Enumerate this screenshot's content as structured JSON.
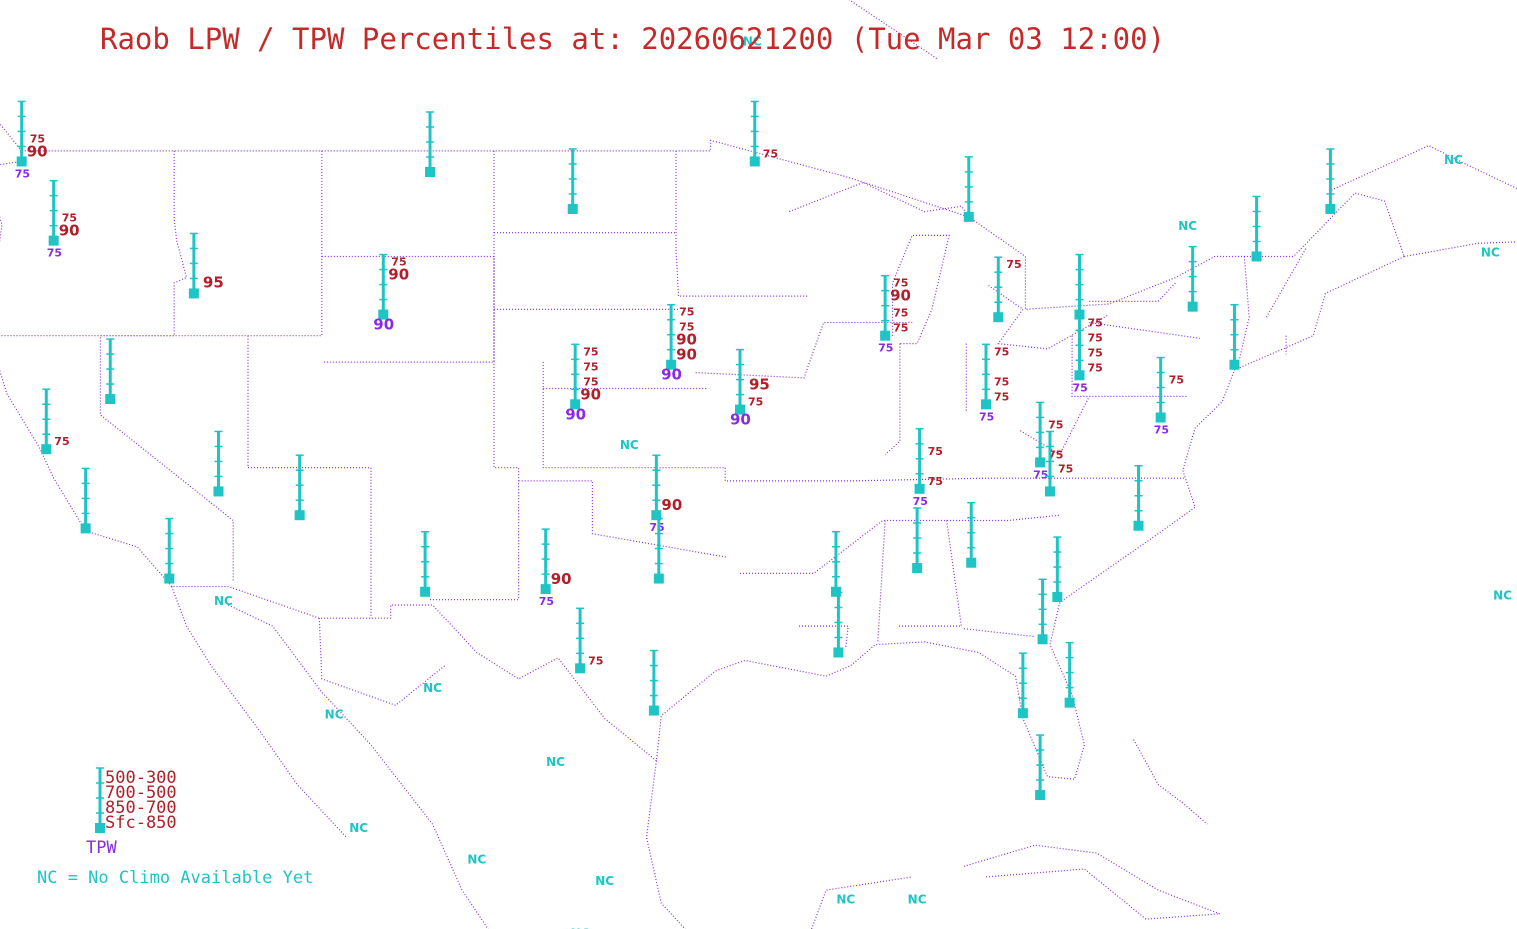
{
  "title": "Raob LPW / TPW Percentiles at: 20260621200 (Tue Mar 03 12:00)",
  "colors": {
    "title": "#c42a2a",
    "lpw": "#b0202a",
    "tpw": "#8a2be2",
    "station": "#1fc4c4",
    "map": "#8a2bd8"
  },
  "legend": {
    "layers": [
      "500-300",
      "700-500",
      "850-700",
      "Sfc-850"
    ],
    "tpw_label": "TPW",
    "nc_note": "NC = No Climo Available Yet"
  },
  "nc_label": "NC",
  "nc_marks": [
    {
      "lon": -130.5,
      "lat": 55.5
    },
    {
      "lon": -119.5,
      "lat": 55.2
    },
    {
      "lon": -107.0,
      "lat": 55.5
    },
    {
      "lon": -93.5,
      "lat": 53.0
    },
    {
      "lon": -128.5,
      "lat": 50.0
    },
    {
      "lon": -75.8,
      "lat": 46.0
    },
    {
      "lon": -65.0,
      "lat": 48.5
    },
    {
      "lon": -63.5,
      "lat": 45.0
    },
    {
      "lon": -63.0,
      "lat": 32.0
    },
    {
      "lon": -115.0,
      "lat": 31.8
    },
    {
      "lon": -110.5,
      "lat": 27.5
    },
    {
      "lon": -106.5,
      "lat": 28.5
    },
    {
      "lon": -101.5,
      "lat": 25.7
    },
    {
      "lon": -109.5,
      "lat": 23.2
    },
    {
      "lon": -104.7,
      "lat": 22.0
    },
    {
      "lon": -99.5,
      "lat": 21.2
    },
    {
      "lon": -100.5,
      "lat": 19.2
    },
    {
      "lon": -89.7,
      "lat": 20.5
    },
    {
      "lon": -86.8,
      "lat": 20.5
    },
    {
      "lon": -98.5,
      "lat": 37.7
    }
  ],
  "stations": [
    {
      "lon": -123.2,
      "lat": 48.6,
      "labels": [
        {
          "t": "75",
          "c": "lpw",
          "s": "s",
          "dx": 8,
          "dy": -19
        },
        {
          "t": "90",
          "c": "lpw",
          "s": "l",
          "dx": 5,
          "dy": -5
        },
        {
          "t": "75",
          "c": "tpw",
          "s": "s",
          "dx": -7,
          "dy": 16
        }
      ]
    },
    {
      "lon": -121.9,
      "lat": 45.6,
      "labels": [
        {
          "t": "75",
          "c": "lpw",
          "s": "s",
          "dx": 8,
          "dy": -19
        },
        {
          "t": "90",
          "c": "lpw",
          "s": "l",
          "dx": 5,
          "dy": -5
        },
        {
          "t": "75",
          "c": "tpw",
          "s": "s",
          "dx": -7,
          "dy": 16
        }
      ]
    },
    {
      "lon": -116.2,
      "lat": 43.6,
      "labels": [
        {
          "t": "95",
          "c": "lpw",
          "s": "l",
          "dx": 9,
          "dy": -6
        }
      ]
    },
    {
      "lon": -108.5,
      "lat": 42.8,
      "labels": [
        {
          "t": "75",
          "c": "lpw",
          "s": "s",
          "dx": 8,
          "dy": -49
        },
        {
          "t": "90",
          "c": "lpw",
          "s": "l",
          "dx": 5,
          "dy": -35
        },
        {
          "t": "90",
          "c": "tpw",
          "s": "l",
          "dx": -10,
          "dy": 15
        }
      ]
    },
    {
      "lon": -106.6,
      "lat": 48.2,
      "labels": []
    },
    {
      "lon": -100.8,
      "lat": 46.8,
      "labels": []
    },
    {
      "lon": -93.4,
      "lat": 48.6,
      "labels": [
        {
          "t": "75",
          "c": "lpw",
          "s": "s",
          "dx": 8,
          "dy": -4
        }
      ]
    },
    {
      "lon": -119.6,
      "lat": 39.6,
      "labels": []
    },
    {
      "lon": -122.2,
      "lat": 37.7,
      "labels": [
        {
          "t": "75",
          "c": "lpw",
          "s": "s",
          "dx": 8,
          "dy": -4
        }
      ]
    },
    {
      "lon": -115.2,
      "lat": 36.1,
      "labels": []
    },
    {
      "lon": -111.9,
      "lat": 35.2,
      "labels": []
    },
    {
      "lon": -120.6,
      "lat": 34.7,
      "labels": []
    },
    {
      "lon": -117.2,
      "lat": 32.8,
      "labels": []
    },
    {
      "lon": -106.8,
      "lat": 32.3,
      "labels": []
    },
    {
      "lon": -101.9,
      "lat": 32.4,
      "labels": [
        {
          "t": "90",
          "c": "lpw",
          "s": "l",
          "dx": 5,
          "dy": -5
        },
        {
          "t": "75",
          "c": "tpw",
          "s": "s",
          "dx": -7,
          "dy": 16
        }
      ]
    },
    {
      "lon": -100.5,
      "lat": 29.4,
      "labels": [
        {
          "t": "75",
          "c": "lpw",
          "s": "s",
          "dx": 8,
          "dy": -4
        }
      ]
    },
    {
      "lon": -97.5,
      "lat": 27.8,
      "labels": []
    },
    {
      "lon": -100.7,
      "lat": 39.4,
      "labels": [
        {
          "t": "75",
          "c": "lpw",
          "s": "s",
          "dx": 8,
          "dy": -49
        },
        {
          "t": "75",
          "c": "lpw",
          "s": "s",
          "dx": 8,
          "dy": -34
        },
        {
          "t": "75",
          "c": "lpw",
          "s": "s",
          "dx": 8,
          "dy": -19
        },
        {
          "t": "90",
          "c": "lpw",
          "s": "l",
          "dx": 5,
          "dy": -5
        },
        {
          "t": "90",
          "c": "tpw",
          "s": "l",
          "dx": -10,
          "dy": 15
        }
      ]
    },
    {
      "lon": -96.8,
      "lat": 40.9,
      "labels": [
        {
          "t": "75",
          "c": "lpw",
          "s": "s",
          "dx": 8,
          "dy": -49
        },
        {
          "t": "75",
          "c": "lpw",
          "s": "s",
          "dx": 8,
          "dy": -34
        },
        {
          "t": "90",
          "c": "lpw",
          "s": "l",
          "dx": 5,
          "dy": -20
        },
        {
          "t": "90",
          "c": "lpw",
          "s": "l",
          "dx": 5,
          "dy": -5
        },
        {
          "t": "90",
          "c": "tpw",
          "s": "l",
          "dx": -10,
          "dy": 15
        }
      ]
    },
    {
      "lon": -94.0,
      "lat": 39.2,
      "labels": [
        {
          "t": "95",
          "c": "lpw",
          "s": "l",
          "dx": 9,
          "dy": -20
        },
        {
          "t": "75",
          "c": "lpw",
          "s": "s",
          "dx": 8,
          "dy": -4
        },
        {
          "t": "90",
          "c": "tpw",
          "s": "l",
          "dx": -10,
          "dy": 15
        }
      ]
    },
    {
      "lon": -97.4,
      "lat": 35.2,
      "labels": [
        {
          "t": "90",
          "c": "lpw",
          "s": "l",
          "dx": 5,
          "dy": -5
        },
        {
          "t": "75",
          "c": "tpw",
          "s": "s",
          "dx": -7,
          "dy": 16
        }
      ]
    },
    {
      "lon": -97.3,
      "lat": 32.8,
      "labels": []
    },
    {
      "lon": -88.1,
      "lat": 42.0,
      "labels": [
        {
          "t": "75",
          "c": "lpw",
          "s": "s",
          "dx": 8,
          "dy": -49
        },
        {
          "t": "90",
          "c": "lpw",
          "s": "l",
          "dx": 5,
          "dy": -35
        },
        {
          "t": "75",
          "c": "lpw",
          "s": "s",
          "dx": 8,
          "dy": -19
        },
        {
          "t": "75",
          "c": "lpw",
          "s": "s",
          "dx": 8,
          "dy": -4
        },
        {
          "t": "75",
          "c": "tpw",
          "s": "s",
          "dx": -7,
          "dy": 16
        }
      ]
    },
    {
      "lon": -84.7,
      "lat": 46.5,
      "labels": []
    },
    {
      "lon": -83.5,
      "lat": 42.7,
      "labels": [
        {
          "t": "75",
          "c": "lpw",
          "s": "s",
          "dx": 8,
          "dy": -49
        }
      ]
    },
    {
      "lon": -84.0,
      "lat": 39.4,
      "labels": [
        {
          "t": "75",
          "c": "lpw",
          "s": "s",
          "dx": 8,
          "dy": -49
        },
        {
          "t": "75",
          "c": "lpw",
          "s": "s",
          "dx": 8,
          "dy": -19
        },
        {
          "t": "75",
          "c": "lpw",
          "s": "s",
          "dx": 8,
          "dy": -4
        },
        {
          "t": "75",
          "c": "tpw",
          "s": "s",
          "dx": -7,
          "dy": 16
        }
      ]
    },
    {
      "lon": -80.2,
      "lat": 42.8,
      "labels": []
    },
    {
      "lon": -80.2,
      "lat": 40.5,
      "labels": [
        {
          "t": "75",
          "c": "lpw",
          "s": "s",
          "dx": 8,
          "dy": -49
        },
        {
          "t": "75",
          "c": "lpw",
          "s": "s",
          "dx": 8,
          "dy": -34
        },
        {
          "t": "75",
          "c": "lpw",
          "s": "s",
          "dx": 8,
          "dy": -19
        },
        {
          "t": "75",
          "c": "lpw",
          "s": "s",
          "dx": 8,
          "dy": -4
        },
        {
          "t": "75",
          "c": "tpw",
          "s": "s",
          "dx": -7,
          "dy": 16
        }
      ]
    },
    {
      "lon": -76.9,
      "lat": 38.9,
      "labels": [
        {
          "t": "75",
          "c": "lpw",
          "s": "s",
          "dx": 8,
          "dy": -34
        },
        {
          "t": "75",
          "c": "tpw",
          "s": "s",
          "dx": -7,
          "dy": 16
        }
      ]
    },
    {
      "lon": -75.6,
      "lat": 43.1,
      "labels": []
    },
    {
      "lon": -73.0,
      "lat": 45.0,
      "labels": []
    },
    {
      "lon": -70.0,
      "lat": 46.8,
      "labels": []
    },
    {
      "lon": -73.9,
      "lat": 40.9,
      "labels": []
    },
    {
      "lon": -86.7,
      "lat": 36.2,
      "labels": [
        {
          "t": "75",
          "c": "lpw",
          "s": "s",
          "dx": 8,
          "dy": -34
        },
        {
          "t": "75",
          "c": "lpw",
          "s": "s",
          "dx": 8,
          "dy": -4
        },
        {
          "t": "75",
          "c": "tpw",
          "s": "s",
          "dx": -7,
          "dy": 16
        }
      ]
    },
    {
      "lon": -81.8,
      "lat": 37.2,
      "labels": [
        {
          "t": "75",
          "c": "lpw",
          "s": "s",
          "dx": 8,
          "dy": -34
        },
        {
          "t": "75",
          "c": "lpw",
          "s": "s",
          "dx": 8,
          "dy": -4
        },
        {
          "t": "75",
          "c": "tpw",
          "s": "s",
          "dx": -7,
          "dy": 16
        }
      ]
    },
    {
      "lon": -81.4,
      "lat": 36.1,
      "labels": [
        {
          "t": "75",
          "c": "lpw",
          "s": "s",
          "dx": 8,
          "dy": -19
        }
      ]
    },
    {
      "lon": -77.8,
      "lat": 34.8,
      "labels": []
    },
    {
      "lon": -86.8,
      "lat": 33.2,
      "labels": []
    },
    {
      "lon": -84.6,
      "lat": 33.4,
      "labels": []
    },
    {
      "lon": -90.1,
      "lat": 32.3,
      "labels": []
    },
    {
      "lon": -90.0,
      "lat": 30.0,
      "labels": []
    },
    {
      "lon": -81.1,
      "lat": 32.1,
      "labels": []
    },
    {
      "lon": -81.7,
      "lat": 30.5,
      "labels": []
    },
    {
      "lon": -82.5,
      "lat": 27.7,
      "labels": []
    },
    {
      "lon": -80.6,
      "lat": 28.1,
      "labels": []
    },
    {
      "lon": -81.8,
      "lat": 24.6,
      "labels": []
    }
  ]
}
